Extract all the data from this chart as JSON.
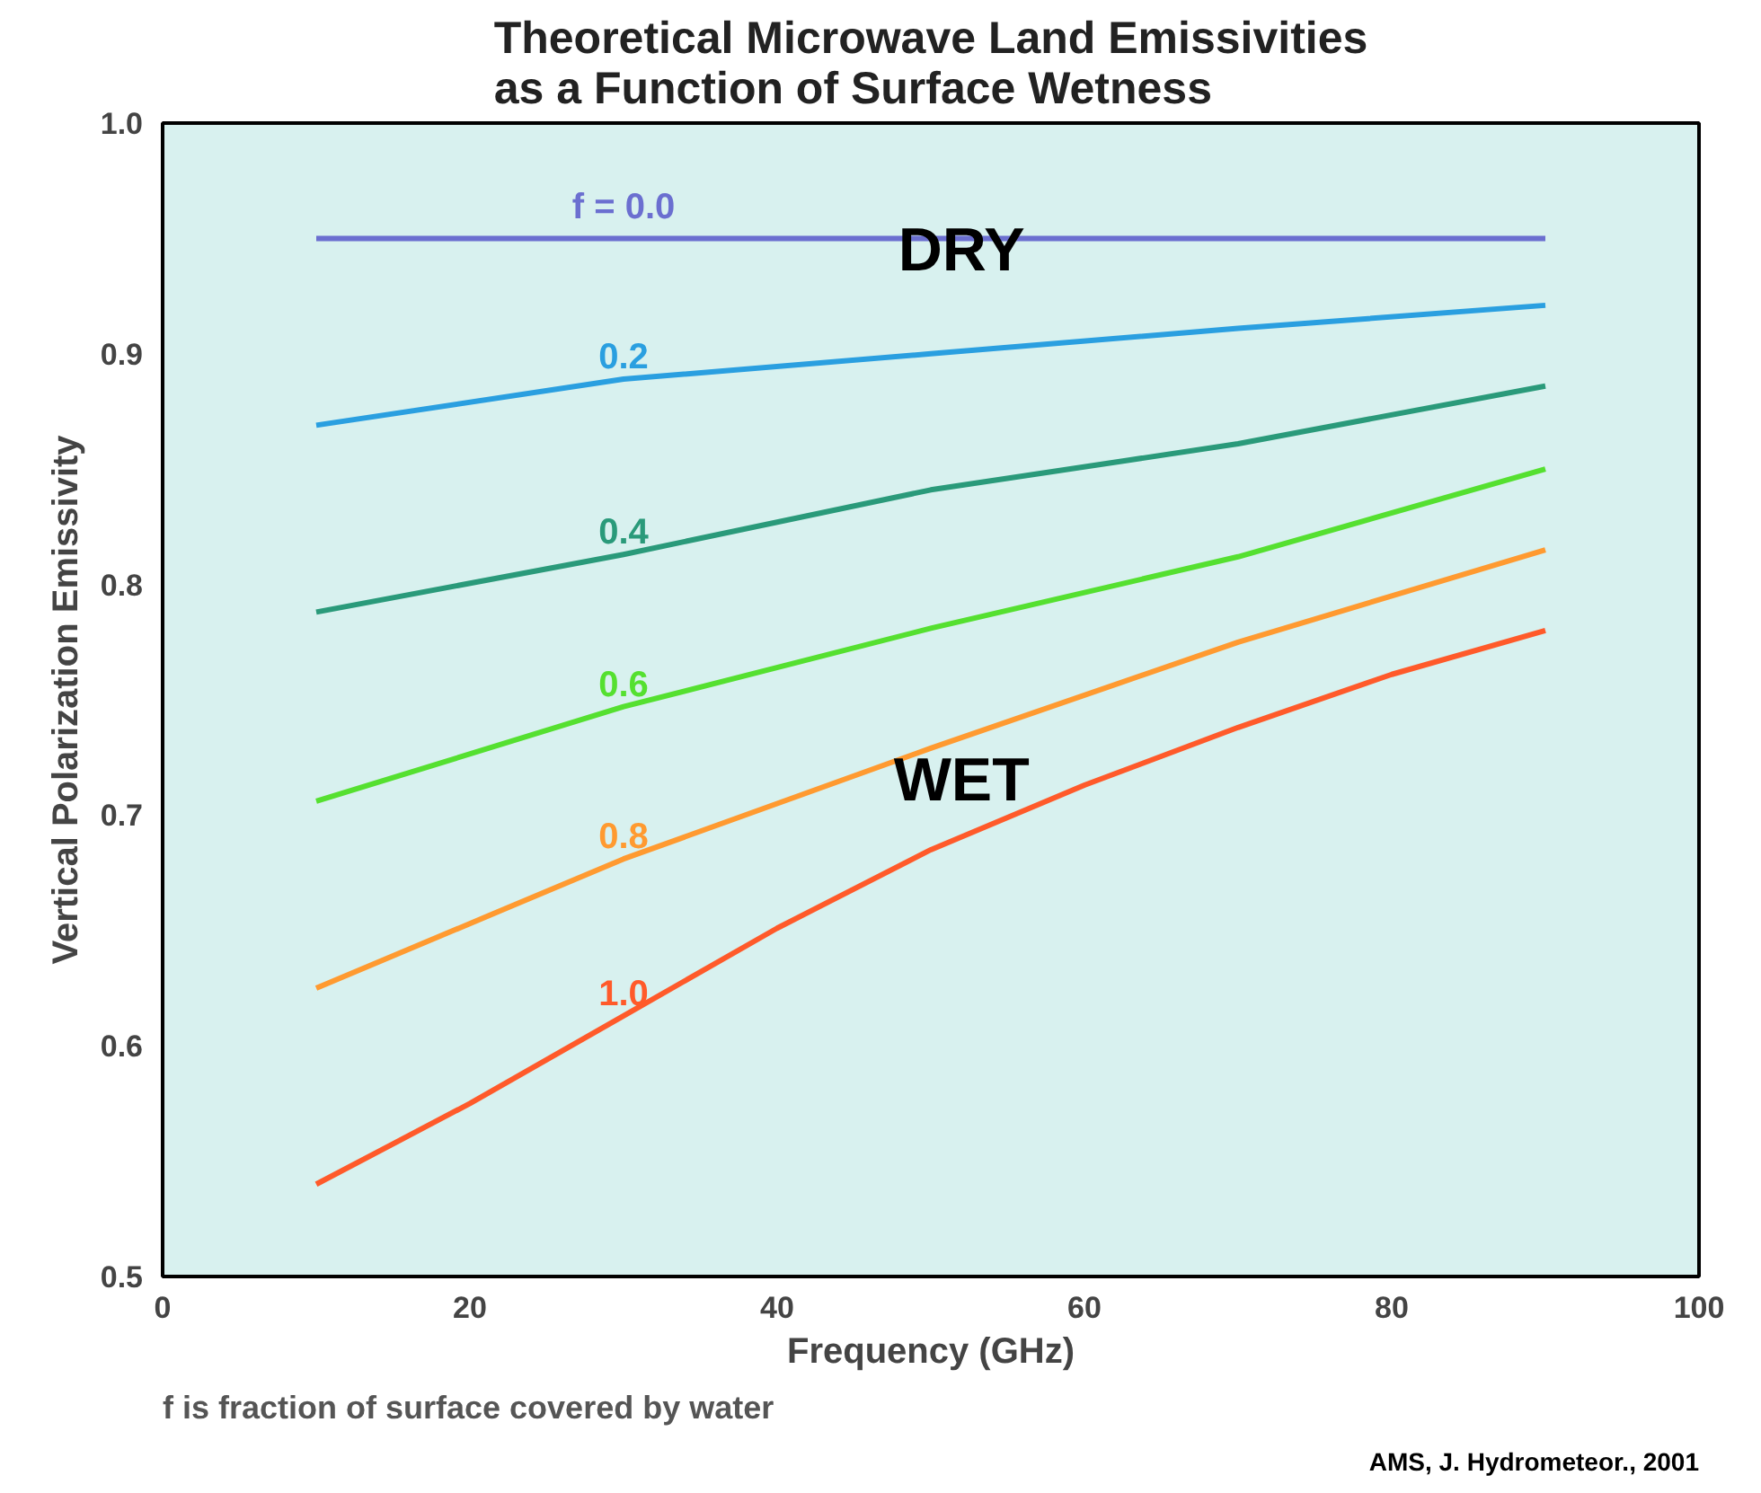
{
  "chart_data": {
    "type": "line",
    "title": "Theoretical Microwave Land Emissivities\nas a Function of Surface Wetness",
    "xlabel": "Frequency (GHz)",
    "ylabel": "Vertical Polarization Emissivity",
    "x": [
      10,
      30,
      50,
      70,
      90
    ],
    "series": [
      {
        "name": "f = 0.0",
        "color": "#6b6fd0",
        "values": [
          0.95,
          0.95,
          0.95,
          0.95,
          0.95
        ]
      },
      {
        "name": "0.2",
        "color": "#2a9fe0",
        "values": [
          0.869,
          0.889,
          0.9,
          0.911,
          0.921
        ]
      },
      {
        "name": "0.4",
        "color": "#2a9a7a",
        "values": [
          0.788,
          0.813,
          0.841,
          0.861,
          0.886
        ]
      },
      {
        "name": "0.6",
        "color": "#55e030",
        "values": [
          0.706,
          0.747,
          0.781,
          0.812,
          0.85
        ]
      },
      {
        "name": "0.8",
        "color": "#ff9a30",
        "values": [
          0.625,
          0.681,
          0.729,
          0.775,
          0.815
        ]
      },
      {
        "name": "1.0",
        "color": "#ff5a2a",
        "x": [
          10,
          20,
          30,
          40,
          50,
          60,
          70,
          80,
          90
        ],
        "values": [
          0.54,
          0.575,
          0.613,
          0.651,
          0.685,
          0.713,
          0.738,
          0.761,
          0.78
        ]
      }
    ],
    "xlim": [
      0,
      100
    ],
    "xticks": [
      0,
      20,
      40,
      60,
      80,
      100
    ],
    "ylim": [
      0.5,
      1.0
    ],
    "yticks": [
      {
        "value": 0.5,
        "label": "0.5"
      },
      0.6,
      0.7,
      0.8,
      0.9,
      {
        "value": 1.0,
        "label": "1.0"
      }
    ],
    "grid": false,
    "marker": "none",
    "line_style": "solid",
    "annotations": [
      "DRY",
      "WET",
      "f is fraction of surface covered by water",
      "AMS, J. Hydrometeor., 2001"
    ]
  }
}
